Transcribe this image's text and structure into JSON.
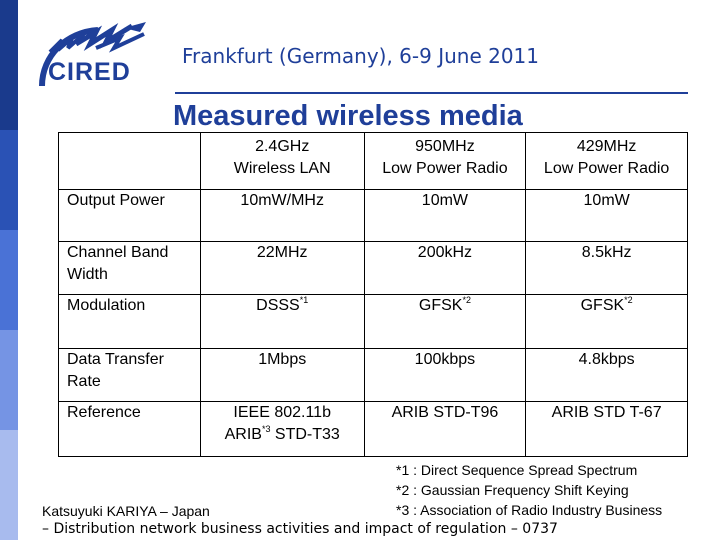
{
  "header": {
    "logo_text": "CIRED",
    "title": "Frankfurt (Germany), 6-9 June 2011"
  },
  "slide": {
    "title": "Measured wireless media"
  },
  "table": {
    "columns": [
      {
        "line1": "2.4GHz",
        "line2": "Wireless LAN"
      },
      {
        "line1": "950MHz",
        "line2": "Low Power Radio"
      },
      {
        "line1": "429MHz",
        "line2": "Low Power Radio"
      }
    ],
    "rows": [
      {
        "label": "Output Power",
        "values": [
          {
            "text": "10mW/MHz",
            "sup": ""
          },
          {
            "text": "10mW",
            "sup": ""
          },
          {
            "text": "10mW",
            "sup": ""
          }
        ]
      },
      {
        "label": "Channel Band Width",
        "values": [
          {
            "text": "22MHz",
            "sup": ""
          },
          {
            "text": "200kHz",
            "sup": ""
          },
          {
            "text": "8.5kHz",
            "sup": ""
          }
        ]
      },
      {
        "label": "Modulation",
        "values": [
          {
            "text": "DSSS",
            "sup": "*1"
          },
          {
            "text": "GFSK",
            "sup": "*2"
          },
          {
            "text": "GFSK",
            "sup": "*2"
          }
        ]
      },
      {
        "label": "Data Transfer Rate",
        "values": [
          {
            "text": "1Mbps",
            "sup": ""
          },
          {
            "text": "100kbps",
            "sup": ""
          },
          {
            "text": "4.8kbps",
            "sup": ""
          }
        ]
      }
    ],
    "reference": {
      "label": "Reference",
      "col1_line1": "IEEE 802.11b",
      "col1_line2_pre": "ARIB",
      "col1_line2_sup": "*3",
      "col1_line2_post": " STD-T33",
      "col2": "ARIB STD-T96",
      "col3": "ARIB STD T-67"
    }
  },
  "footnotes": [
    "*1 : Direct Sequence Spread Spectrum",
    "*2 : Gaussian Frequency Shift Keying",
    "*3 : Association of Radio Industry Business"
  ],
  "footer": {
    "author": "Katsuyuki KARIYA – Japan",
    "session": "– Distribution network business activities and impact of regulation – 0737"
  },
  "colors": {
    "accent": "#1f3f99"
  }
}
